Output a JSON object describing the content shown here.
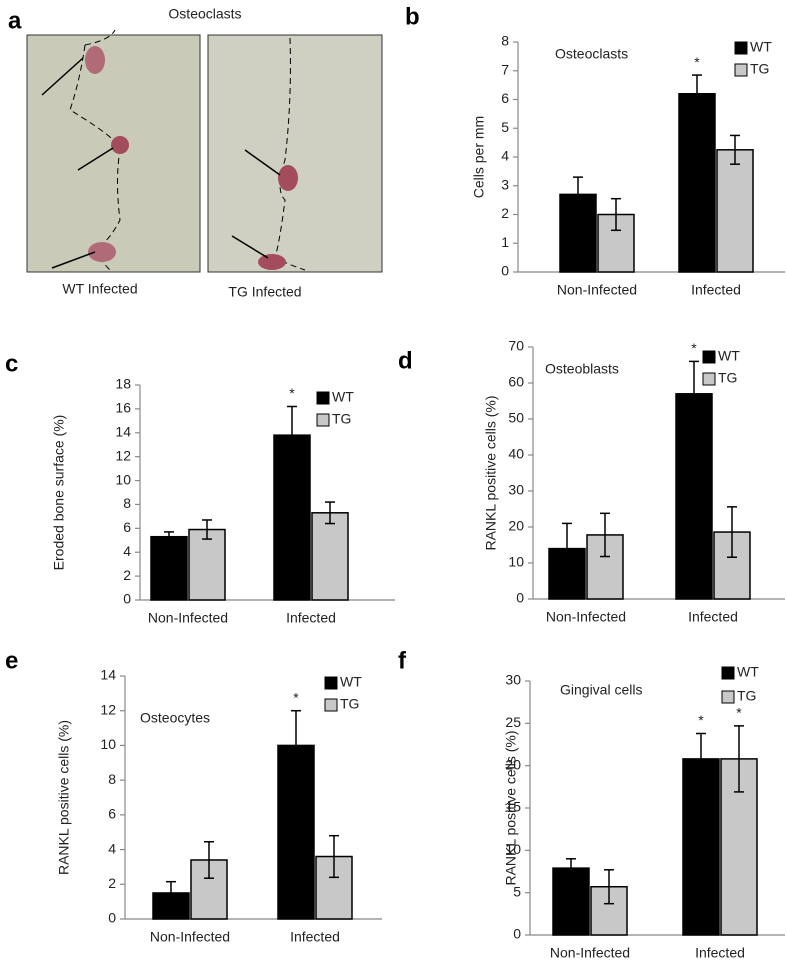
{
  "figure_a": {
    "label": "a",
    "title": "Osteoclasts",
    "images": [
      {
        "caption": "WT Infected"
      },
      {
        "caption": "TG Infected"
      }
    ]
  },
  "chart_data": [
    {
      "type": "bar",
      "panel": "b",
      "title": "Osteoclasts",
      "y_label": "Cells per mm",
      "categories": [
        "Non-Infected",
        "Infected"
      ],
      "series": [
        {
          "name": "WT",
          "color": "#000000",
          "values": [
            2.7,
            6.2
          ],
          "errors": [
            0.6,
            0.65
          ]
        },
        {
          "name": "TG",
          "color": "#c8c8c8",
          "values": [
            2.0,
            4.25
          ],
          "errors": [
            0.55,
            0.5
          ]
        }
      ],
      "annotations": [
        {
          "text": "*",
          "series": "WT",
          "category": "Infected"
        }
      ],
      "ylim": [
        0,
        8
      ],
      "yticks": [
        0,
        1,
        2,
        3,
        4,
        5,
        6,
        7,
        8
      ]
    },
    {
      "type": "bar",
      "panel": "c",
      "y_label": "Eroded bone surface (%)",
      "categories": [
        "Non-Infected",
        "Infected"
      ],
      "series": [
        {
          "name": "WT",
          "color": "#000000",
          "values": [
            5.3,
            13.8
          ],
          "errors": [
            0.4,
            2.4
          ]
        },
        {
          "name": "TG",
          "color": "#c8c8c8",
          "values": [
            5.9,
            7.3
          ],
          "errors": [
            0.8,
            0.9
          ]
        }
      ],
      "annotations": [
        {
          "text": "*",
          "series": "WT",
          "category": "Infected"
        }
      ],
      "ylim": [
        0,
        18
      ],
      "yticks": [
        0,
        2,
        4,
        6,
        8,
        10,
        12,
        14,
        16,
        18
      ]
    },
    {
      "type": "bar",
      "panel": "d",
      "title": "Osteoblasts",
      "y_label": "RANKL positive cells (%)",
      "categories": [
        "Non-Infected",
        "Infected"
      ],
      "series": [
        {
          "name": "WT",
          "color": "#000000",
          "values": [
            14,
            57
          ],
          "errors": [
            7,
            9
          ]
        },
        {
          "name": "TG",
          "color": "#c8c8c8",
          "values": [
            17.8,
            18.6
          ],
          "errors": [
            6,
            7
          ]
        }
      ],
      "annotations": [
        {
          "text": "*",
          "series": "WT",
          "category": "Infected"
        }
      ],
      "ylim": [
        0,
        70
      ],
      "yticks": [
        0,
        10,
        20,
        30,
        40,
        50,
        60,
        70
      ]
    },
    {
      "type": "bar",
      "panel": "e",
      "title": "Osteocytes",
      "y_label": "RANKL positive cells (%)",
      "categories": [
        "Non-Infected",
        "Infected"
      ],
      "series": [
        {
          "name": "WT",
          "color": "#000000",
          "values": [
            1.5,
            10
          ],
          "errors": [
            0.65,
            2
          ]
        },
        {
          "name": "TG",
          "color": "#c8c8c8",
          "values": [
            3.4,
            3.6
          ],
          "errors": [
            1.05,
            1.2
          ]
        }
      ],
      "annotations": [
        {
          "text": "*",
          "series": "WT",
          "category": "Infected"
        }
      ],
      "ylim": [
        0,
        14
      ],
      "yticks": [
        0,
        2,
        4,
        6,
        8,
        10,
        12,
        14
      ]
    },
    {
      "type": "bar",
      "panel": "f",
      "title": "Gingival cells",
      "y_label": "RANKL positive cells (%)",
      "categories": [
        "Non-Infected",
        "Infected"
      ],
      "series": [
        {
          "name": "WT",
          "color": "#000000",
          "values": [
            7.9,
            20.8
          ],
          "errors": [
            1.1,
            3
          ]
        },
        {
          "name": "TG",
          "color": "#c8c8c8",
          "values": [
            5.7,
            20.8
          ],
          "errors": [
            2,
            3.9
          ]
        }
      ],
      "annotations": [
        {
          "text": "*",
          "series": "WT",
          "category": "Infected"
        },
        {
          "text": "*",
          "series": "TG",
          "category": "Infected"
        }
      ],
      "ylim": [
        0,
        30
      ],
      "yticks": [
        0,
        5,
        10,
        15,
        20,
        25,
        30
      ]
    }
  ]
}
